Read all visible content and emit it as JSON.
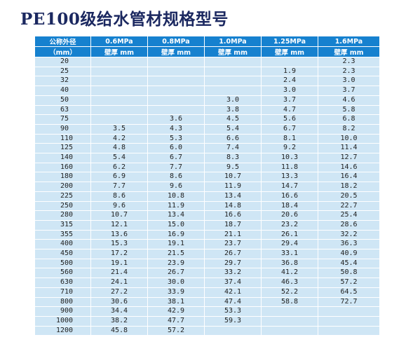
{
  "title": "PE100级给水管材规格型号",
  "header": {
    "row1": [
      "公称外径",
      "0.6MPa",
      "0.8MPa",
      "1.0MPa",
      "1.25MPa",
      "1.6MPa"
    ],
    "row2": [
      "（mm）",
      "壁厚 mm",
      "壁厚 mm",
      "壁厚 mm",
      "壁厚 mm",
      "壁厚 mm"
    ]
  },
  "rows": [
    [
      "20",
      "",
      "",
      "",
      "",
      "2.3"
    ],
    [
      "25",
      "",
      "",
      "",
      "1.9",
      "2.3"
    ],
    [
      "32",
      "",
      "",
      "",
      "2.4",
      "3.0"
    ],
    [
      "40",
      "",
      "",
      "",
      "3.0",
      "3.7"
    ],
    [
      "50",
      "",
      "",
      "3.0",
      "3.7",
      "4.6"
    ],
    [
      "63",
      "",
      "",
      "3.8",
      "4.7",
      "5.8"
    ],
    [
      "75",
      "",
      "3.6",
      "4.5",
      "5.6",
      "6.8"
    ],
    [
      "90",
      "3.5",
      "4.3",
      "5.4",
      "6.7",
      "8.2"
    ],
    [
      "110",
      "4.2",
      "5.3",
      "6.6",
      "8.1",
      "10.0"
    ],
    [
      "125",
      "4.8",
      "6.0",
      "7.4",
      "9.2",
      "11.4"
    ],
    [
      "140",
      "5.4",
      "6.7",
      "8.3",
      "10.3",
      "12.7"
    ],
    [
      "160",
      "6.2",
      "7.7",
      "9.5",
      "11.8",
      "14.6"
    ],
    [
      "180",
      "6.9",
      "8.6",
      "10.7",
      "13.3",
      "16.4"
    ],
    [
      "200",
      "7.7",
      "9.6",
      "11.9",
      "14.7",
      "18.2"
    ],
    [
      "225",
      "8.6",
      "10.8",
      "13.4",
      "16.6",
      "20.5"
    ],
    [
      "250",
      "9.6",
      "11.9",
      "14.8",
      "18.4",
      "22.7"
    ],
    [
      "280",
      "10.7",
      "13.4",
      "16.6",
      "20.6",
      "25.4"
    ],
    [
      "315",
      "12.1",
      "15.0",
      "18.7",
      "23.2",
      "28.6"
    ],
    [
      "355",
      "13.6",
      "16.9",
      "21.1",
      "26.1",
      "32.2"
    ],
    [
      "400",
      "15.3",
      "19.1",
      "23.7",
      "29.4",
      "36.3"
    ],
    [
      "450",
      "17.2",
      "21.5",
      "26.7",
      "33.1",
      "40.9"
    ],
    [
      "500",
      "19.1",
      "23.9",
      "29.7",
      "36.8",
      "45.4"
    ],
    [
      "560",
      "21.4",
      "26.7",
      "33.2",
      "41.2",
      "50.8"
    ],
    [
      "630",
      "24.1",
      "30.0",
      "37.4",
      "46.3",
      "57.2"
    ],
    [
      "710",
      "27.2",
      "33.9",
      "42.1",
      "52.2",
      "64.5"
    ],
    [
      "800",
      "30.6",
      "38.1",
      "47.4",
      "58.8",
      "72.7"
    ],
    [
      "900",
      "34.4",
      "42.9",
      "53.3",
      "",
      ""
    ],
    [
      "1000",
      "38.2",
      "47.7",
      "59.3",
      "",
      ""
    ],
    [
      "1200",
      "45.8",
      "57.2",
      "",
      "",
      ""
    ]
  ],
  "colors": {
    "title": "#1b2860",
    "header_bg": "#1681cf",
    "cell_bg": "#cfe6f5"
  }
}
